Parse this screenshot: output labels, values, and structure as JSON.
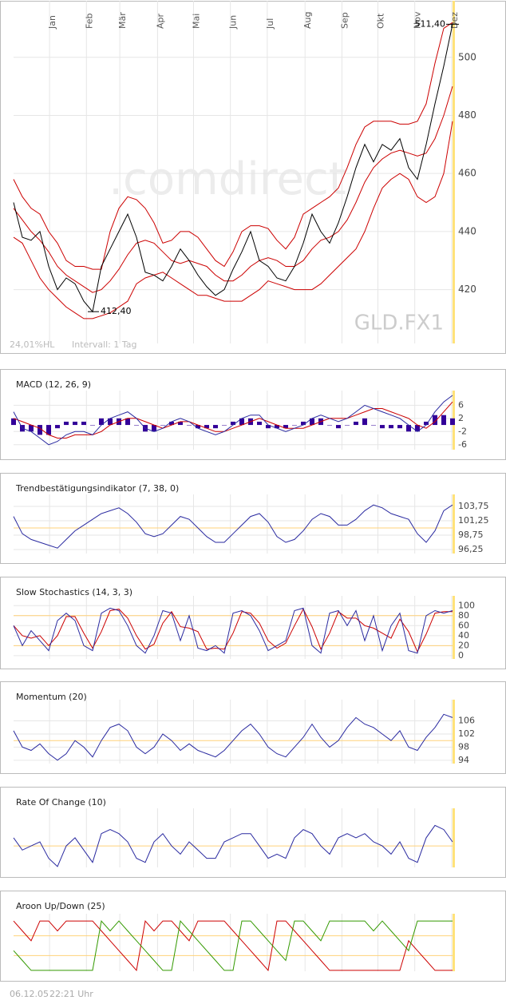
{
  "chart_data": [
    {
      "type": "line",
      "symbol": "GLD.FX1",
      "watermark": ".comdirect",
      "range_label": "24,01%HL",
      "interval": "Intervall: 1 Tag",
      "x": [
        0,
        1,
        2,
        3,
        4,
        5,
        6,
        7,
        8,
        9,
        10,
        11,
        12,
        13,
        14,
        15,
        16,
        17,
        18,
        19,
        20,
        21,
        22,
        23,
        24,
        25,
        26,
        27,
        28,
        29,
        30,
        31,
        32,
        33,
        34,
        35,
        36,
        37,
        38,
        39,
        40,
        41,
        42,
        43,
        44,
        45,
        46,
        47,
        48,
        49,
        50
      ],
      "xlim": [
        0,
        50
      ],
      "xticks": [
        {
          "value": 4.1,
          "label": "Jan"
        },
        {
          "value": 8.3,
          "label": "Feb"
        },
        {
          "value": 12.1,
          "label": "Mär"
        },
        {
          "value": 16.4,
          "label": "Apr"
        },
        {
          "value": 20.5,
          "label": "Mai"
        },
        {
          "value": 24.7,
          "label": "Jun"
        },
        {
          "value": 28.9,
          "label": "Jul"
        },
        {
          "value": 33.2,
          "label": "Aug"
        },
        {
          "value": 37.4,
          "label": "Sep"
        },
        {
          "value": 41.5,
          "label": "Okt"
        },
        {
          "value": 45.7,
          "label": "Nov"
        },
        {
          "value": 49.9,
          "label": "Dez"
        }
      ],
      "ylim": [
        402,
        517
      ],
      "yticks": [
        420,
        440,
        460,
        480,
        500
      ],
      "grid": true,
      "series": [
        {
          "color": "#cc0000",
          "values": [
            458,
            452,
            448,
            446,
            440,
            436,
            430,
            428,
            428,
            427,
            427,
            440,
            448,
            452,
            451,
            448,
            443,
            436,
            437,
            440,
            440,
            438,
            434,
            430,
            428,
            433,
            440,
            442,
            442,
            441,
            437,
            434,
            438,
            446,
            448,
            450,
            452,
            455,
            462,
            470,
            476,
            478,
            478,
            478,
            477,
            477,
            478,
            484,
            498,
            510,
            512
          ]
        },
        {
          "color": "#cc0000",
          "values": [
            448,
            444,
            440,
            437,
            433,
            428,
            425,
            423,
            421,
            419,
            420,
            423,
            427,
            432,
            436,
            437,
            436,
            433,
            430,
            429,
            430,
            429,
            428,
            425,
            423,
            423,
            425,
            428,
            430,
            431,
            430,
            428,
            428,
            430,
            434,
            437,
            438,
            440,
            444,
            450,
            457,
            462,
            465,
            467,
            468,
            467,
            466,
            467,
            472,
            480,
            490
          ]
        },
        {
          "color": "#cc0000",
          "values": [
            438,
            436,
            430,
            424,
            420,
            417,
            414,
            412,
            410,
            410,
            411,
            412,
            414,
            416,
            422,
            424,
            425,
            426,
            424,
            422,
            420,
            418,
            418,
            417,
            416,
            416,
            416,
            418,
            420,
            423,
            422,
            421,
            420,
            420,
            420,
            422,
            425,
            428,
            431,
            434,
            440,
            448,
            455,
            458,
            460,
            458,
            452,
            450,
            452,
            460,
            478
          ]
        },
        {
          "color": "#000000",
          "values": [
            450,
            438,
            437,
            440,
            428,
            420,
            424,
            422,
            416,
            412.4,
            428,
            434,
            440,
            446,
            438,
            426,
            425,
            423,
            428,
            434,
            430,
            425,
            421,
            418,
            420,
            427,
            433,
            440,
            430,
            428,
            424,
            423,
            428,
            436,
            446,
            440,
            436,
            443,
            452,
            462,
            470,
            464,
            470,
            468,
            472,
            462,
            458,
            470,
            484,
            497,
            511.4
          ]
        }
      ],
      "annotations": [
        {
          "label": "511,40",
          "value": 511.4,
          "x": 50
        },
        {
          "label": "412,40",
          "value": 412.4,
          "x": 9
        }
      ]
    },
    {
      "type": "line",
      "title": "MACD (12, 26, 9)",
      "ylim": [
        -8,
        9
      ],
      "yticks": [
        6,
        2,
        -2,
        -6
      ],
      "series": [
        {
          "type": "bar",
          "color": "#330099",
          "values": [
            2,
            -2,
            -2,
            -3,
            -3,
            -1,
            1,
            1,
            1,
            0,
            2,
            2,
            2,
            2,
            0,
            -2,
            -2,
            0,
            1,
            1,
            0,
            -1,
            -1,
            -1,
            0,
            1,
            2,
            2,
            1,
            -1,
            -1,
            -1,
            0,
            1,
            2,
            2,
            0,
            -1,
            0,
            1,
            2,
            0,
            -1,
            -1,
            -1,
            -2,
            -2,
            1,
            3,
            3,
            2
          ]
        },
        {
          "color": "#cc0000",
          "values": [
            2,
            1,
            0,
            -1,
            -3,
            -4,
            -4,
            -3,
            -3,
            -3,
            -2,
            0,
            1,
            2,
            2,
            1,
            0,
            -1,
            0,
            1,
            1,
            0,
            -1,
            -2,
            -2,
            -1,
            0,
            1,
            2,
            1,
            0,
            -1,
            -1,
            -1,
            0,
            1,
            2,
            2,
            2,
            3,
            4,
            5,
            5,
            4,
            3,
            2,
            0,
            -1,
            1,
            4,
            7
          ]
        },
        {
          "color": "#2a2aa0",
          "values": [
            4,
            -1,
            -2,
            -4,
            -6,
            -5,
            -3,
            -2,
            -2,
            -3,
            0,
            2,
            3,
            4,
            2,
            -1,
            -2,
            -1,
            1,
            2,
            1,
            -1,
            -2,
            -3,
            -2,
            0,
            2,
            3,
            3,
            0,
            -1,
            -2,
            -1,
            0,
            2,
            3,
            2,
            1,
            2,
            4,
            6,
            5,
            4,
            3,
            2,
            0,
            -2,
            0,
            4,
            7,
            9
          ]
        }
      ]
    },
    {
      "type": "line",
      "title": "Trendbestätigungsindikator (7, 38, 0)",
      "ylim": [
        95,
        105
      ],
      "yticks": [
        {
          "value": 103.75,
          "label": "103,75"
        },
        {
          "value": 101.25,
          "label": "101,25"
        },
        {
          "value": 98.75,
          "label": "98,75"
        },
        {
          "value": 96.25,
          "label": "96,25"
        }
      ],
      "reference_lines": [
        100
      ],
      "series": [
        {
          "color": "#2a2aa0",
          "values": [
            102,
            99,
            98,
            97.5,
            97,
            96.5,
            98,
            99.5,
            100.5,
            101.5,
            102.5,
            103,
            103.5,
            102.5,
            101,
            99,
            98.5,
            99,
            100.5,
            102,
            101.5,
            100,
            98.5,
            97.5,
            97.5,
            99,
            100.5,
            102,
            102.5,
            101,
            98.5,
            97.5,
            98,
            99.5,
            101.5,
            102.5,
            102,
            100.5,
            100.5,
            101.5,
            103,
            104,
            103.5,
            102.5,
            102,
            101.5,
            99,
            97.5,
            99.5,
            103,
            104
          ]
        }
      ]
    },
    {
      "type": "line",
      "title": "Slow Stochastics (14, 3, 3)",
      "ylim": [
        -5,
        110
      ],
      "yticks": [
        100,
        80,
        60,
        40,
        20,
        0
      ],
      "reference_lines": [
        80,
        20
      ],
      "series": [
        {
          "color": "#cc0000",
          "values": [
            60,
            40,
            35,
            40,
            20,
            40,
            78,
            78,
            45,
            15,
            48,
            90,
            93,
            75,
            40,
            13,
            23,
            65,
            88,
            58,
            55,
            48,
            13,
            15,
            13,
            45,
            88,
            85,
            65,
            30,
            15,
            25,
            60,
            93,
            58,
            13,
            45,
            88,
            75,
            75,
            60,
            55,
            45,
            35,
            73,
            48,
            8,
            43,
            85,
            88,
            88
          ]
        },
        {
          "color": "#2a2aa0",
          "values": [
            60,
            20,
            50,
            30,
            10,
            70,
            85,
            70,
            20,
            10,
            85,
            95,
            90,
            60,
            20,
            5,
            40,
            90,
            85,
            30,
            80,
            15,
            10,
            20,
            5,
            85,
            90,
            80,
            50,
            10,
            20,
            30,
            90,
            95,
            20,
            5,
            85,
            90,
            60,
            90,
            30,
            80,
            10,
            60,
            85,
            10,
            5,
            80,
            90,
            85,
            90
          ]
        }
      ]
    },
    {
      "type": "line",
      "title": "Momentum (20)",
      "ylim": [
        92.5,
        111
      ],
      "yticks": [
        106,
        102,
        98,
        94
      ],
      "reference_lines": [
        100
      ],
      "series": [
        {
          "color": "#2a2aa0",
          "values": [
            103,
            98,
            97,
            99,
            96,
            94,
            96,
            100,
            98,
            95,
            100,
            104,
            105,
            103,
            98,
            96,
            98,
            102,
            100,
            97,
            99,
            97,
            96,
            95,
            97,
            100,
            103,
            105,
            102,
            98,
            96,
            95,
            98,
            101,
            105,
            101,
            98,
            100,
            104,
            107,
            105,
            104,
            102,
            100,
            103,
            98,
            97,
            101,
            104,
            108,
            107
          ]
        }
      ]
    },
    {
      "type": "line",
      "title": "Rate Of Change (10)",
      "ylim": [
        -6,
        8
      ],
      "reference_lines": [
        0
      ],
      "series": [
        {
          "color": "#2a2aa0",
          "values": [
            2,
            -1,
            0,
            1,
            -3,
            -5,
            0,
            2,
            -1,
            -4,
            3,
            4,
            3,
            1,
            -3,
            -4,
            1,
            3,
            0,
            -2,
            1,
            -1,
            -3,
            -3,
            1,
            2,
            3,
            3,
            0,
            -3,
            -2,
            -3,
            2,
            4,
            3,
            0,
            -2,
            2,
            3,
            2,
            3,
            1,
            0,
            -2,
            1,
            -3,
            -4,
            2,
            5,
            4,
            1
          ]
        }
      ]
    },
    {
      "type": "line",
      "title": "Aroon Up/Down (25)",
      "ylim": [
        -5,
        105
      ],
      "reference_lines": [
        70,
        30
      ],
      "series": [
        {
          "color": "#cc0000",
          "values": [
            100,
            80,
            60,
            100,
            100,
            80,
            100,
            100,
            100,
            100,
            80,
            60,
            40,
            20,
            0,
            100,
            80,
            100,
            100,
            80,
            60,
            100,
            100,
            100,
            100,
            80,
            60,
            40,
            20,
            0,
            100,
            100,
            80,
            60,
            40,
            20,
            0,
            0,
            0,
            0,
            0,
            0,
            0,
            0,
            0,
            60,
            40,
            20,
            0,
            0,
            0
          ]
        },
        {
          "color": "#339900",
          "values": [
            40,
            20,
            0,
            0,
            0,
            0,
            0,
            0,
            0,
            0,
            100,
            80,
            100,
            80,
            60,
            40,
            20,
            0,
            0,
            100,
            80,
            60,
            40,
            20,
            0,
            0,
            100,
            100,
            80,
            60,
            40,
            20,
            100,
            100,
            80,
            60,
            100,
            100,
            100,
            100,
            100,
            80,
            100,
            80,
            60,
            40,
            100,
            100,
            100,
            100,
            100
          ]
        }
      ]
    }
  ],
  "footer": {
    "date": "06.12.05",
    "time": "22:21 Uhr"
  }
}
